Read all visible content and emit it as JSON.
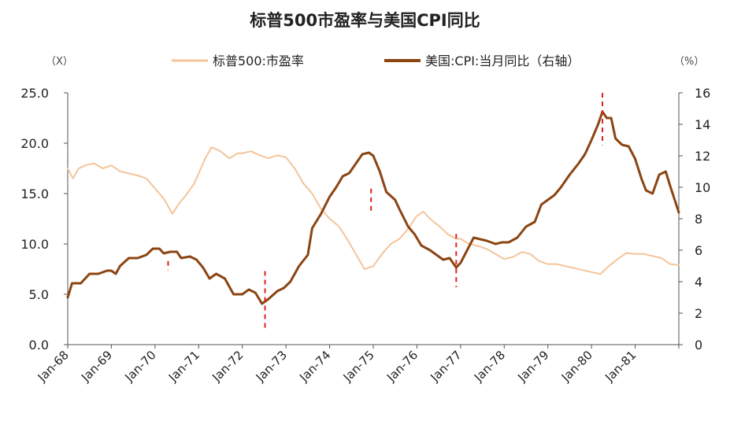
{
  "chart_data": {
    "type": "line",
    "title": "标普500市盈率与美国CPI同比",
    "left_axis_unit": "（X）",
    "right_axis_unit": "（%）",
    "y_left": {
      "min": 0,
      "max": 25,
      "ticks": [
        "0.0",
        "5.0",
        "10.0",
        "15.0",
        "20.0",
        "25.0"
      ]
    },
    "y_right": {
      "min": 0,
      "max": 16,
      "ticks": [
        "0",
        "2",
        "4",
        "6",
        "8",
        "10",
        "12",
        "14",
        "16"
      ]
    },
    "x_range": [
      1968.0,
      1982.0
    ],
    "x_tick_labels": [
      "Jan-68",
      "Jan-69",
      "Jan-70",
      "Jan-71",
      "Jan-72",
      "Jan-73",
      "Jan-74",
      "Jan-75",
      "Jan-76",
      "Jan-77",
      "Jan-78",
      "Jan-79",
      "Jan-80",
      "Jan-81"
    ],
    "legend_position": "top",
    "series": [
      {
        "name": "标普500:市盈率",
        "axis": "left",
        "color": "#F4C49A",
        "points": [
          [
            1968.0,
            17.5
          ],
          [
            1968.12,
            16.5
          ],
          [
            1968.25,
            17.5
          ],
          [
            1968.4,
            17.8
          ],
          [
            1968.6,
            18.0
          ],
          [
            1968.8,
            17.5
          ],
          [
            1969.0,
            17.8
          ],
          [
            1969.2,
            17.2
          ],
          [
            1969.4,
            17.0
          ],
          [
            1969.6,
            16.8
          ],
          [
            1969.8,
            16.5
          ],
          [
            1970.0,
            15.5
          ],
          [
            1970.2,
            14.5
          ],
          [
            1970.4,
            13.0
          ],
          [
            1970.55,
            14.0
          ],
          [
            1970.7,
            14.8
          ],
          [
            1970.9,
            16.0
          ],
          [
            1971.0,
            17.0
          ],
          [
            1971.15,
            18.5
          ],
          [
            1971.3,
            19.6
          ],
          [
            1971.5,
            19.2
          ],
          [
            1971.7,
            18.5
          ],
          [
            1971.9,
            19.0
          ],
          [
            1972.0,
            19.0
          ],
          [
            1972.2,
            19.2
          ],
          [
            1972.4,
            18.8
          ],
          [
            1972.6,
            18.5
          ],
          [
            1972.8,
            18.8
          ],
          [
            1973.0,
            18.6
          ],
          [
            1973.2,
            17.5
          ],
          [
            1973.4,
            16.0
          ],
          [
            1973.6,
            15.0
          ],
          [
            1973.8,
            13.5
          ],
          [
            1974.0,
            12.5
          ],
          [
            1974.2,
            11.8
          ],
          [
            1974.4,
            10.5
          ],
          [
            1974.6,
            9.0
          ],
          [
            1974.8,
            7.5
          ],
          [
            1975.0,
            7.8
          ],
          [
            1975.2,
            9.0
          ],
          [
            1975.4,
            10.0
          ],
          [
            1975.6,
            10.5
          ],
          [
            1975.8,
            11.5
          ],
          [
            1976.0,
            12.8
          ],
          [
            1976.15,
            13.2
          ],
          [
            1976.3,
            12.5
          ],
          [
            1976.5,
            11.8
          ],
          [
            1976.7,
            11.0
          ],
          [
            1976.9,
            10.5
          ],
          [
            1977.0,
            10.5
          ],
          [
            1977.2,
            10.0
          ],
          [
            1977.4,
            9.8
          ],
          [
            1977.6,
            9.5
          ],
          [
            1977.8,
            9.0
          ],
          [
            1978.0,
            8.5
          ],
          [
            1978.2,
            8.7
          ],
          [
            1978.4,
            9.2
          ],
          [
            1978.6,
            9.0
          ],
          [
            1978.8,
            8.3
          ],
          [
            1979.0,
            8.0
          ],
          [
            1979.2,
            8.0
          ],
          [
            1979.4,
            7.8
          ],
          [
            1979.6,
            7.6
          ],
          [
            1979.8,
            7.4
          ],
          [
            1980.0,
            7.2
          ],
          [
            1980.2,
            7.0
          ],
          [
            1980.4,
            7.8
          ],
          [
            1980.6,
            8.5
          ],
          [
            1980.8,
            9.1
          ],
          [
            1981.0,
            9.0
          ],
          [
            1981.2,
            9.0
          ],
          [
            1981.4,
            8.8
          ],
          [
            1981.6,
            8.6
          ],
          [
            1981.8,
            8.0
          ],
          [
            1982.0,
            7.9
          ]
        ]
      },
      {
        "name": "美国:CPI:当月同比（右轴）",
        "axis": "right",
        "color": "#8B4513",
        "points": [
          [
            1968.0,
            3.0
          ],
          [
            1968.1,
            3.9
          ],
          [
            1968.3,
            3.9
          ],
          [
            1968.5,
            4.5
          ],
          [
            1968.7,
            4.5
          ],
          [
            1968.9,
            4.7
          ],
          [
            1969.0,
            4.7
          ],
          [
            1969.1,
            4.5
          ],
          [
            1969.2,
            5.0
          ],
          [
            1969.4,
            5.5
          ],
          [
            1969.6,
            5.5
          ],
          [
            1969.8,
            5.7
          ],
          [
            1969.95,
            6.1
          ],
          [
            1970.1,
            6.1
          ],
          [
            1970.2,
            5.8
          ],
          [
            1970.35,
            5.9
          ],
          [
            1970.5,
            5.9
          ],
          [
            1970.6,
            5.5
          ],
          [
            1970.8,
            5.6
          ],
          [
            1970.95,
            5.4
          ],
          [
            1971.1,
            4.9
          ],
          [
            1971.25,
            4.2
          ],
          [
            1971.4,
            4.5
          ],
          [
            1971.6,
            4.2
          ],
          [
            1971.8,
            3.2
          ],
          [
            1972.0,
            3.2
          ],
          [
            1972.15,
            3.5
          ],
          [
            1972.3,
            3.3
          ],
          [
            1972.45,
            2.6
          ],
          [
            1972.6,
            2.9
          ],
          [
            1972.8,
            3.4
          ],
          [
            1972.95,
            3.6
          ],
          [
            1973.1,
            4.0
          ],
          [
            1973.3,
            5.0
          ],
          [
            1973.5,
            5.7
          ],
          [
            1973.6,
            7.4
          ],
          [
            1973.8,
            8.3
          ],
          [
            1974.0,
            9.4
          ],
          [
            1974.15,
            10.0
          ],
          [
            1974.3,
            10.7
          ],
          [
            1974.45,
            10.9
          ],
          [
            1974.6,
            11.5
          ],
          [
            1974.75,
            12.1
          ],
          [
            1974.9,
            12.2
          ],
          [
            1975.0,
            12.0
          ],
          [
            1975.15,
            11.0
          ],
          [
            1975.3,
            9.7
          ],
          [
            1975.5,
            9.2
          ],
          [
            1975.6,
            8.6
          ],
          [
            1975.8,
            7.5
          ],
          [
            1975.95,
            7.0
          ],
          [
            1976.1,
            6.3
          ],
          [
            1976.3,
            6.0
          ],
          [
            1976.45,
            5.7
          ],
          [
            1976.6,
            5.4
          ],
          [
            1976.75,
            5.5
          ],
          [
            1976.9,
            4.9
          ],
          [
            1977.0,
            5.2
          ],
          [
            1977.15,
            6.0
          ],
          [
            1977.3,
            6.8
          ],
          [
            1977.45,
            6.7
          ],
          [
            1977.6,
            6.6
          ],
          [
            1977.8,
            6.4
          ],
          [
            1977.95,
            6.5
          ],
          [
            1978.1,
            6.5
          ],
          [
            1978.3,
            6.8
          ],
          [
            1978.5,
            7.5
          ],
          [
            1978.7,
            7.8
          ],
          [
            1978.85,
            8.9
          ],
          [
            1979.0,
            9.2
          ],
          [
            1979.15,
            9.5
          ],
          [
            1979.3,
            10.0
          ],
          [
            1979.5,
            10.8
          ],
          [
            1979.7,
            11.5
          ],
          [
            1979.85,
            12.1
          ],
          [
            1980.0,
            13.0
          ],
          [
            1980.15,
            14.0
          ],
          [
            1980.25,
            14.8
          ],
          [
            1980.35,
            14.4
          ],
          [
            1980.45,
            14.4
          ],
          [
            1980.55,
            13.1
          ],
          [
            1980.7,
            12.7
          ],
          [
            1980.85,
            12.6
          ],
          [
            1981.0,
            11.8
          ],
          [
            1981.15,
            10.5
          ],
          [
            1981.25,
            9.8
          ],
          [
            1981.4,
            9.6
          ],
          [
            1981.55,
            10.8
          ],
          [
            1981.7,
            11.0
          ],
          [
            1981.8,
            10.1
          ],
          [
            1982.0,
            8.4
          ]
        ]
      }
    ],
    "markers": [
      {
        "x": 1970.3,
        "y_top": 8.3,
        "y_bottom": 7.4,
        "comment": "dashed red marker"
      },
      {
        "x": 1972.52,
        "y_top": 7.3,
        "y_bottom": 1.6
      },
      {
        "x": 1974.95,
        "y_top": 13.3,
        "y_bottom": 15.8
      },
      {
        "x": 1976.9,
        "y_top": 11.0,
        "y_bottom": 5.7
      },
      {
        "x": 1980.25,
        "y_top": 25.0,
        "y_bottom": 19.8
      }
    ],
    "marker_color": "#E02020"
  }
}
